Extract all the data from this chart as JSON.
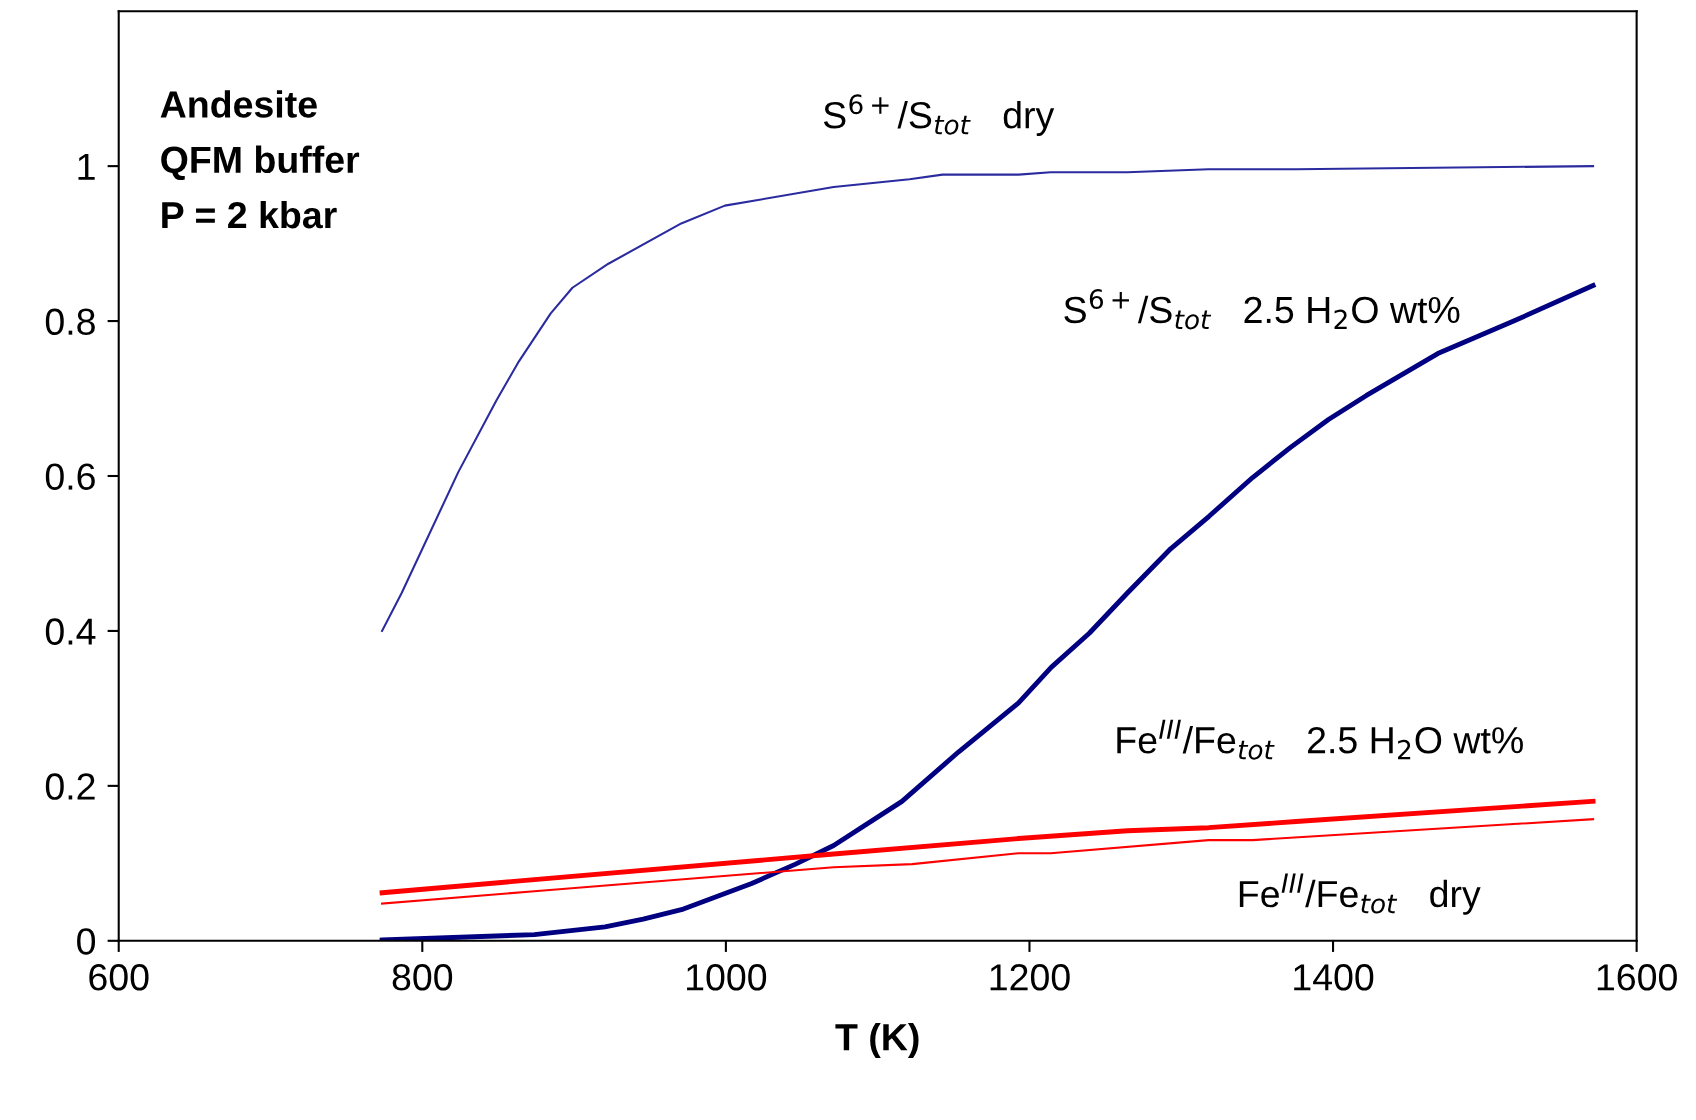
{
  "chart_data": {
    "type": "line",
    "xlabel": "T (K)",
    "xlim": [
      600,
      1600
    ],
    "xticks": [
      600,
      800,
      1000,
      1200,
      1400,
      1600
    ],
    "ylim": [
      0,
      1.2
    ],
    "yticks": [
      0,
      {
        "value": 0.2,
        "label": "0.2"
      },
      {
        "value": 0.4,
        "label": "0.4"
      },
      {
        "value": 0.6,
        "label": "0.6"
      },
      {
        "value": 0.8,
        "label": "0.8"
      },
      1
    ],
    "grid": false,
    "legend": false,
    "marker": "none",
    "line_style": "solid",
    "annotations": [
      "Andesite\nQFM buffer\nP = 2 kbar"
    ],
    "series": [
      {
        "name": "S$^{6+}$/S$_{tot}$   dry",
        "color": "#2b2ba0",
        "x": [
          773.5,
          786.4,
          823.7,
          848.7,
          863,
          884.6,
          898.9,
          922.6,
          970.6,
          999.3,
          1071,
          1121,
          1142.7,
          1192.8,
          1214,
          1264.5,
          1318,
          1375.6,
          1571.3
        ],
        "values": [
          0.4,
          0.449,
          0.605,
          0.697,
          0.746,
          0.81,
          0.843,
          0.874,
          0.926,
          0.949,
          0.973,
          0.983,
          0.989,
          0.989,
          0.992,
          0.992,
          0.996,
          0.996,
          1.0
        ]
      },
      {
        "name": "S$^{6+}$/S$_{tot}$   2.5 H$_{2}$O wt%",
        "color": "#000080",
        "x": [
          773.5,
          873.8,
          920.4,
          945.5,
          972,
          1017,
          1045.9,
          1071,
          1116,
          1153.4,
          1192.8,
          1214.3,
          1239.4,
          1264.5,
          1293,
          1318.3,
          1347,
          1372,
          1397,
          1422,
          1469,
          1519,
          1571.3
        ],
        "values": [
          0.001,
          0.008,
          0.018,
          0.028,
          0.041,
          0.074,
          0.099,
          0.123,
          0.18,
          0.244,
          0.307,
          0.353,
          0.397,
          0.449,
          0.506,
          0.548,
          0.598,
          0.637,
          0.673,
          0.704,
          0.758,
          0.8,
          0.846
        ]
      },
      {
        "name": "Fe$^{III}$/Fe$_{tot}$   2.5 H$_{2}$O wt%",
        "color": "#ff0000",
        "x": [
          773.5,
          873.8,
          1071,
          1192.8,
          1264.5,
          1318,
          1375.6,
          1571.3
        ],
        "values": [
          0.062,
          0.079,
          0.112,
          0.132,
          0.142,
          0.146,
          0.154,
          0.18
        ]
      },
      {
        "name": "Fe$^{III}$/Fe$_{tot}$   dry",
        "color": "#ff0000",
        "x": [
          773.5,
          873.8,
          1071,
          1122.7,
          1192.8,
          1214,
          1318,
          1347,
          1571.3
        ],
        "values": [
          0.048,
          0.064,
          0.095,
          0.099,
          0.113,
          0.113,
          0.13,
          0.13,
          0.157
        ]
      }
    ]
  }
}
